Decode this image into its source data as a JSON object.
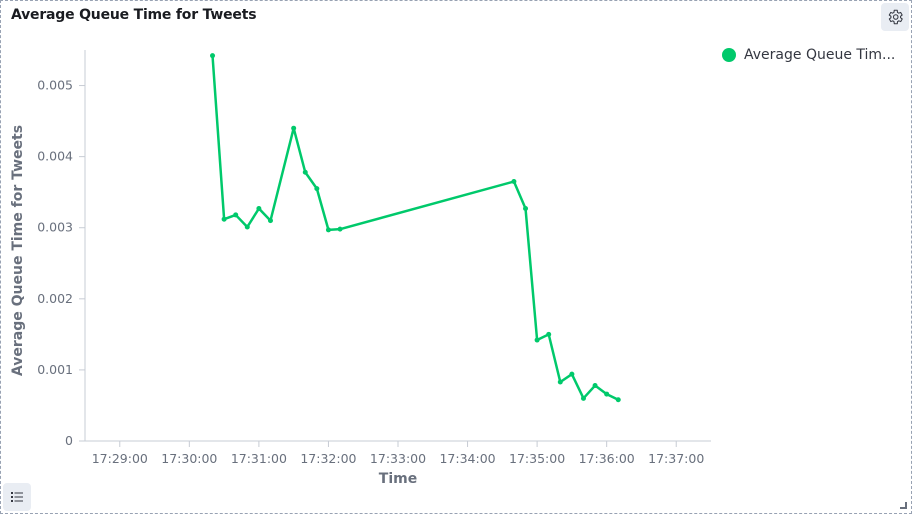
{
  "panel": {
    "title": "Average Queue Time for Tweets"
  },
  "icons": {
    "settings": "gear-icon",
    "legend_toggle": "list-icon"
  },
  "legend": {
    "label": "Average Queue Tim..."
  },
  "colors": {
    "series": "#00c96b",
    "axis": "#c7ccd4",
    "text": "#69707d"
  },
  "chart_data": {
    "type": "line",
    "title": "Average Queue Time for Tweets",
    "xlabel": "Time",
    "ylabel": "Average Queue Time for Tweets",
    "legend_position": "top-right",
    "grid": false,
    "xlim": [
      "17:28:30",
      "17:37:30"
    ],
    "ylim": [
      0,
      0.0055
    ],
    "x_ticks": [
      "17:29:00",
      "17:30:00",
      "17:31:00",
      "17:32:00",
      "17:33:00",
      "17:34:00",
      "17:35:00",
      "17:36:00",
      "17:37:00"
    ],
    "y_ticks": [
      "0",
      "0.001",
      "0.002",
      "0.003",
      "0.004",
      "0.005"
    ],
    "series": [
      {
        "name": "Average Queue Tim...",
        "x": [
          "17:30:20",
          "17:30:30",
          "17:30:40",
          "17:30:50",
          "17:31:00",
          "17:31:10",
          "17:31:30",
          "17:31:40",
          "17:31:50",
          "17:32:00",
          "17:32:10",
          "17:34:40",
          "17:34:50",
          "17:35:00",
          "17:35:10",
          "17:35:20",
          "17:35:30",
          "17:35:40",
          "17:35:50",
          "17:36:00",
          "17:36:10"
        ],
        "values": [
          0.00542,
          0.00312,
          0.00318,
          0.00301,
          0.00327,
          0.0031,
          0.0044,
          0.00378,
          0.00355,
          0.00297,
          0.00298,
          0.00365,
          0.00327,
          0.00142,
          0.0015,
          0.00083,
          0.00094,
          0.0006,
          0.00078,
          0.00066,
          0.00058
        ]
      }
    ]
  }
}
